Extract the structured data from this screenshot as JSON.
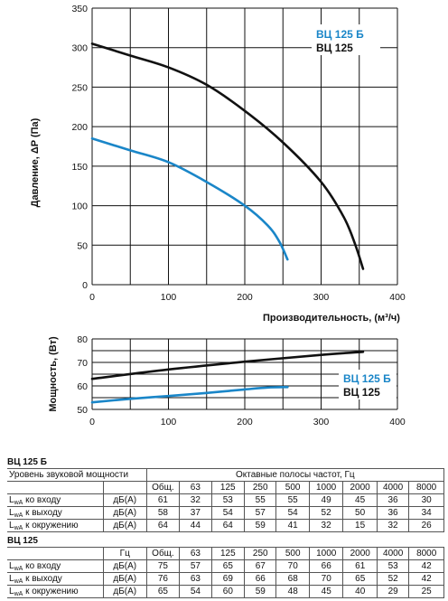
{
  "chart_data": [
    {
      "type": "line",
      "ylabel": "Давление, ΔP (Па)",
      "xlabel": "Производительность, (м³/ч)",
      "xlim": [
        0,
        400
      ],
      "ylim": [
        0,
        350
      ],
      "x_ticks": [
        "0",
        "100",
        "200",
        "300",
        "400"
      ],
      "y_ticks": [
        "0",
        "50",
        "100",
        "150",
        "200",
        "250",
        "300",
        "350"
      ],
      "grid": true,
      "legend_position": "top-right",
      "series": [
        {
          "name": "ВЦ 125 Б",
          "color": "#1a86c8",
          "x": [
            0,
            50,
            100,
            150,
            200,
            230,
            245,
            256
          ],
          "y": [
            185,
            170,
            155,
            130,
            100,
            75,
            55,
            32
          ]
        },
        {
          "name": "ВЦ 125",
          "color": "#111111",
          "x": [
            0,
            50,
            100,
            150,
            200,
            250,
            300,
            330,
            345,
            355
          ],
          "y": [
            305,
            290,
            275,
            253,
            220,
            180,
            130,
            85,
            50,
            20
          ]
        }
      ]
    },
    {
      "type": "line",
      "ylabel": "Мощность, (Вт)",
      "xlim": [
        0,
        400
      ],
      "ylim": [
        50,
        80
      ],
      "x_ticks": [
        "0",
        "100",
        "200",
        "300",
        "400"
      ],
      "y_ticks": [
        "50",
        "60",
        "70",
        "80"
      ],
      "grid": true,
      "legend_position": "right",
      "series": [
        {
          "name": "ВЦ 125 Б",
          "color": "#1a86c8",
          "x": [
            0,
            50,
            100,
            150,
            200,
            230,
            256
          ],
          "y": [
            53,
            54.5,
            55.7,
            57,
            58.5,
            59.3,
            59.5
          ]
        },
        {
          "name": "ВЦ 125",
          "color": "#111111",
          "x": [
            0,
            100,
            200,
            300,
            355
          ],
          "y": [
            63,
            67,
            70.3,
            73.2,
            74.5
          ]
        }
      ]
    }
  ],
  "tables": [
    {
      "title": "ВЦ 125 Б",
      "header_label": "Уровень звуковой мощности",
      "header_unit": "",
      "header_bands_title": "Октавные полосы частот, Гц",
      "columns": [
        "Общ.",
        "63",
        "125",
        "250",
        "500",
        "1000",
        "2000",
        "4000",
        "8000"
      ],
      "rows": [
        {
          "label": "L",
          "sub": "wA",
          "rest": " ко входу",
          "unit": "дБ(А)",
          "values": [
            "61",
            "32",
            "53",
            "55",
            "55",
            "49",
            "45",
            "36",
            "30"
          ]
        },
        {
          "label": "L",
          "sub": "wA",
          "rest": " к выходу",
          "unit": "дБ(А)",
          "values": [
            "58",
            "37",
            "54",
            "57",
            "54",
            "52",
            "50",
            "36",
            "34"
          ]
        },
        {
          "label": "L",
          "sub": "wA",
          "rest": " к окружению",
          "unit": "дБ(А)",
          "values": [
            "64",
            "44",
            "64",
            "59",
            "41",
            "32",
            "15",
            "32",
            "26"
          ]
        }
      ]
    },
    {
      "title": "ВЦ 125",
      "header_unit": "Гц",
      "columns": [
        "Общ.",
        "63",
        "125",
        "250",
        "500",
        "1000",
        "2000",
        "4000",
        "8000"
      ],
      "rows": [
        {
          "label": "L",
          "sub": "wA",
          "rest": " ко входу",
          "unit": "дБ(А)",
          "values": [
            "75",
            "57",
            "65",
            "67",
            "70",
            "66",
            "61",
            "53",
            "42"
          ]
        },
        {
          "label": "L",
          "sub": "wA",
          "rest": " к выходу",
          "unit": "дБ(А)",
          "values": [
            "76",
            "63",
            "69",
            "66",
            "68",
            "70",
            "65",
            "52",
            "42"
          ]
        },
        {
          "label": "L",
          "sub": "wA",
          "rest": " к окружению",
          "unit": "дБ(А)",
          "values": [
            "65",
            "54",
            "60",
            "59",
            "48",
            "45",
            "40",
            "29",
            "25"
          ]
        }
      ]
    }
  ]
}
